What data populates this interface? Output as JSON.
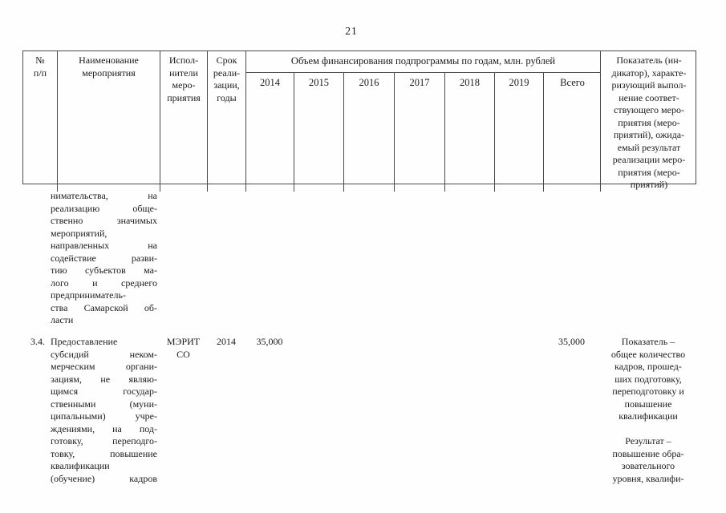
{
  "page_number": "21",
  "table": {
    "columns": {
      "num": "№\nп/п",
      "name": "Наименование\nмероприятия",
      "executors": "Испол-\nнители\nмеро-\nприятия",
      "term": "Срок\nреали-\nзации,\nгоды",
      "finance_group_title": "Объем финансирования подпрограммы по годам, млн. рублей",
      "finance_years": [
        "2014",
        "2015",
        "2016",
        "2017",
        "2018",
        "2019",
        "Всего"
      ],
      "indicator": "Показатель (ин-\nдикатор), характе-\nризующий выпол-\nнение соответ-\nствующего меро-\nприятия (меро-\nприятий), ожида-\nемый результат\nреализации меро-\nприятия (меро-\nприятий)"
    },
    "rows": [
      {
        "num": "",
        "name": "нимательства, на\nреализацию обще-\nственно значимых\nмероприятий,\nнаправленных на\nсодействие разви-\nтию субъектов ма-\nлого и среднего\nпредприниматель-\nства Самарской об-\nласти",
        "executors": "",
        "term": "",
        "y2014": "",
        "total": "",
        "indicator": ""
      },
      {
        "num": "3.4.",
        "name": "Предоставление\nсубсидий неком-\nмерческим органи-\nзациям, не являю-\nщимся государ-\nственными (муни-\nципальными) учре-\nждениями, на под-\nготовку, переподго-\nтовку, повышение\nквалификации\n(обучение) кадров",
        "executors": "МЭРИТ\nСО",
        "term": "2014",
        "y2014": "35,000",
        "total": "35,000",
        "indicator": "Показатель –\nобщее количество\nкадров, прошед-\nших подготовку,\nпереподготовку и\nповышение\nквалификации\n\nРезультат –\nповышение обра-\nзовательного\nуровня, квалифи-"
      }
    ]
  }
}
